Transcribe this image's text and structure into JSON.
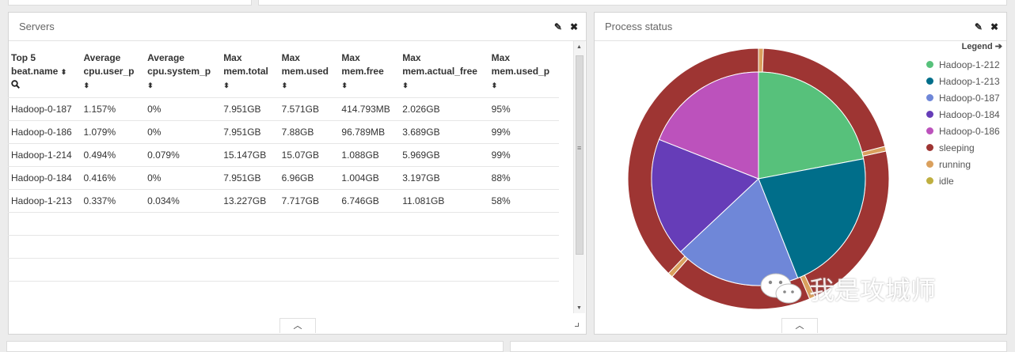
{
  "servers_panel": {
    "title": "Servers",
    "columns": [
      {
        "line1": "Top 5",
        "line2": "beat.name",
        "sortable": true,
        "search": true
      },
      {
        "line1": "Average",
        "line2": "cpu.user_p",
        "sortable": true
      },
      {
        "line1": "Average",
        "line2": "cpu.system_p",
        "sortable": true
      },
      {
        "line1": "Max",
        "line2": "mem.total",
        "sortable": true
      },
      {
        "line1": "Max",
        "line2": "mem.used",
        "sortable": true
      },
      {
        "line1": "Max",
        "line2": "mem.free",
        "sortable": true
      },
      {
        "line1": "Max",
        "line2": "mem.actual_free",
        "sortable": true
      },
      {
        "line1": "Max",
        "line2": "mem.used_p",
        "sortable": true
      }
    ],
    "rows": [
      [
        "Hadoop-0-187",
        "1.157%",
        "0%",
        "7.951GB",
        "7.571GB",
        "414.793MB",
        "2.026GB",
        "95%"
      ],
      [
        "Hadoop-0-186",
        "1.079%",
        "0%",
        "7.951GB",
        "7.88GB",
        "96.789MB",
        "3.689GB",
        "99%"
      ],
      [
        "Hadoop-1-214",
        "0.494%",
        "0.079%",
        "15.147GB",
        "15.07GB",
        "1.088GB",
        "5.969GB",
        "99%"
      ],
      [
        "Hadoop-0-184",
        "0.416%",
        "0%",
        "7.951GB",
        "6.96GB",
        "1.004GB",
        "3.197GB",
        "88%"
      ],
      [
        "Hadoop-1-213",
        "0.337%",
        "0.034%",
        "13.227GB",
        "7.717GB",
        "6.746GB",
        "11.081GB",
        "58%"
      ]
    ],
    "empty_rows": 4,
    "icons": {
      "edit": "pencil-icon",
      "close": "close-icon",
      "sort": "sort-icon",
      "search": "search-icon",
      "collapse": "chevron-up-icon"
    }
  },
  "process_panel": {
    "title": "Process status",
    "legend_title": "Legend",
    "legend": [
      {
        "label": "Hadoop-1-212",
        "color": "#57c17b"
      },
      {
        "label": "Hadoop-1-213",
        "color": "#006e8a"
      },
      {
        "label": "Hadoop-0-187",
        "color": "#6f87d8"
      },
      {
        "label": "Hadoop-0-184",
        "color": "#663db8"
      },
      {
        "label": "Hadoop-0-186",
        "color": "#bc52bc"
      },
      {
        "label": "sleeping",
        "color": "#9e3533"
      },
      {
        "label": "running",
        "color": "#daa05d"
      },
      {
        "label": "idle",
        "color": "#bfaf40"
      }
    ],
    "icons": {
      "edit": "pencil-icon",
      "close": "close-icon",
      "collapse": "chevron-up-icon",
      "legend": "arrow-circle-right-icon"
    }
  },
  "chart_data": {
    "type": "pie",
    "inner": {
      "labels": [
        "Hadoop-1-212",
        "Hadoop-1-213",
        "Hadoop-0-187",
        "Hadoop-0-184",
        "Hadoop-0-186"
      ],
      "values": [
        22,
        22,
        19,
        18,
        19
      ],
      "colors": [
        "#57c17b",
        "#006e8a",
        "#6f87d8",
        "#663db8",
        "#bc52bc"
      ]
    },
    "outer": {
      "labels": [
        "running",
        "sleeping",
        "running",
        "sleeping",
        "running",
        "sleeping",
        "running",
        "sleeping"
      ],
      "values": [
        0.6,
        20.4,
        0.6,
        21.3,
        0.7,
        17.9,
        0.6,
        37.9
      ],
      "colors": [
        "#daa05d",
        "#9e3533",
        "#daa05d",
        "#9e3533",
        "#daa05d",
        "#9e3533",
        "#daa05d",
        "#9e3533"
      ]
    },
    "legend_position": "right"
  },
  "watermark": {
    "text": "我是攻城师",
    "icon": "wechat-icon"
  }
}
